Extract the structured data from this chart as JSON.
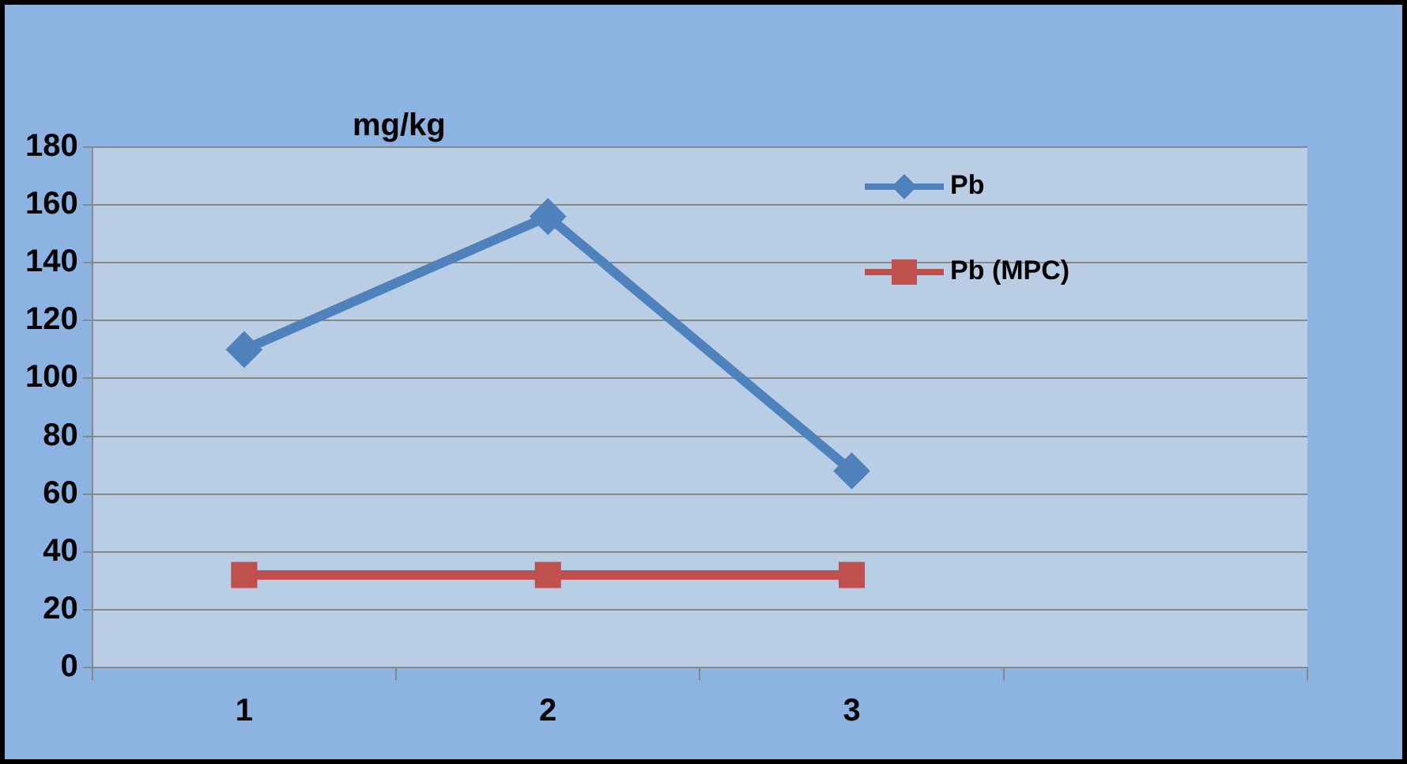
{
  "chart_data": {
    "type": "line",
    "ylabel": "mg/kg",
    "categories": [
      "1",
      "2",
      "3",
      null
    ],
    "series": [
      {
        "name": "Pb",
        "color": "#4f81bd",
        "values": [
          110,
          156,
          68,
          null
        ],
        "marker": "diamond"
      },
      {
        "name": "Pb (MPC)",
        "color": "#c0504d",
        "values": [
          32,
          32,
          32,
          null
        ],
        "marker": "square"
      }
    ],
    "ylim": [
      0,
      180
    ],
    "yticks": [
      0,
      20,
      40,
      60,
      80,
      100,
      120,
      140,
      160,
      180
    ],
    "grid": "y",
    "legend": "top right",
    "line_style": "solid"
  }
}
